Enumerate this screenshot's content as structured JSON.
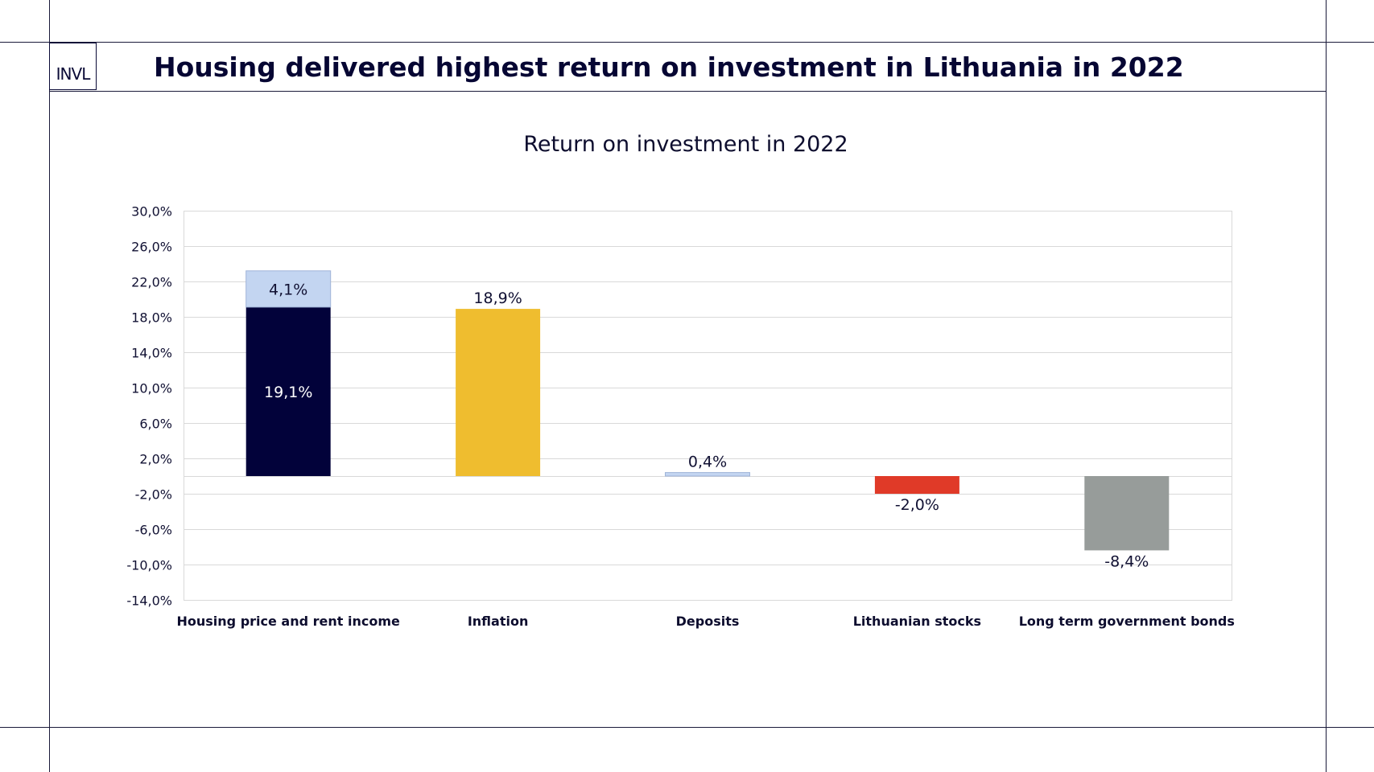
{
  "header": {
    "logo_text": "INVL",
    "title": "Housing delivered highest return on investment in Lithuania in 2022"
  },
  "chart_data": {
    "type": "bar",
    "title": "Return on investment in 2022",
    "xlabel": "",
    "ylabel": "",
    "ylim": [
      -14,
      30
    ],
    "yticks": [
      30,
      26,
      22,
      18,
      14,
      10,
      6,
      2,
      -2,
      -6,
      -10,
      -14
    ],
    "ytick_labels": [
      "30,0%",
      "26,0%",
      "22,0%",
      "18,0%",
      "14,0%",
      "10,0%",
      "6,0%",
      "2,0%",
      "-2,0%",
      "-6,0%",
      "-10,0%",
      "-14,0%"
    ],
    "grid": true,
    "legend": "none",
    "categories": [
      "Housing price and rent income",
      "Inflation",
      "Deposits",
      "Lithuanian  stocks",
      "Long term government bonds"
    ],
    "bars": [
      {
        "segments": [
          {
            "value": 19.1,
            "label": "19,1%",
            "color": "#02023a",
            "label_color": "#ffffff",
            "label_pos": "inside"
          },
          {
            "value": 4.1,
            "label": "4,1%",
            "color": "#c3d5f1",
            "label_color": "#111133",
            "label_pos": "inside"
          }
        ]
      },
      {
        "segments": [
          {
            "value": 18.9,
            "label": "18,9%",
            "color": "#efbd2f",
            "label_color": "#111133",
            "label_pos": "outside"
          }
        ]
      },
      {
        "segments": [
          {
            "value": 0.4,
            "label": "0,4%",
            "color": "#c3d5f1",
            "label_color": "#111133",
            "label_pos": "outside"
          }
        ]
      },
      {
        "segments": [
          {
            "value": -2.0,
            "label": "-2,0%",
            "color": "#e03a28",
            "label_color": "#111133",
            "label_pos": "outside"
          }
        ]
      },
      {
        "segments": [
          {
            "value": -8.4,
            "label": "-8,4%",
            "color": "#979c9a",
            "label_color": "#111133",
            "label_pos": "outside"
          }
        ]
      }
    ]
  }
}
